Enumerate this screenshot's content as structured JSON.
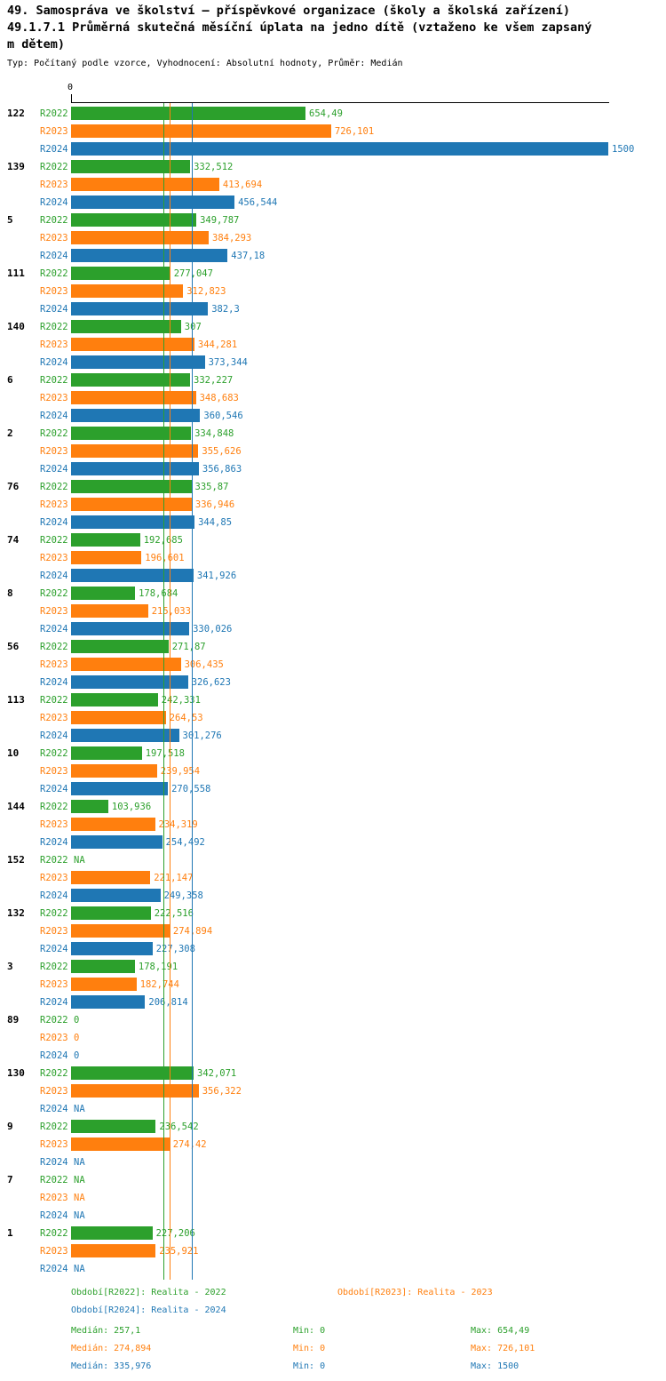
{
  "title": "49. Samospráva ve školství – příspěvkové organizace (školy a školská zařízení)",
  "subtitle_lines": [
    "49.1.7.1 Průměrná skutečná měsíční úplata na jedno dítě (vztaženo ke všem zapsaný",
    "m dětem)"
  ],
  "meta": "Typ: Počítaný podle vzorce, Vyhodnocení: Absolutní hodnoty, Průměr: Medián",
  "chart_data": {
    "type": "bar",
    "orientation": "horizontal",
    "axis": {
      "zero_label": "0",
      "xmin": 0,
      "xmax": 1500
    },
    "series_names": [
      "R2022",
      "R2023",
      "R2024"
    ],
    "colors": {
      "R2022": "#2ca02c",
      "R2023": "#ff7f0e",
      "R2024": "#1f77b4"
    },
    "medians": {
      "R2022": 257.1,
      "R2023": 274.894,
      "R2024": 335.976
    },
    "groups": [
      {
        "id": "122",
        "bars": [
          {
            "series": "R2022",
            "value": 654.49,
            "label": "654,49"
          },
          {
            "series": "R2023",
            "value": 726.101,
            "label": "726,101"
          },
          {
            "series": "R2024",
            "value": 1500,
            "label": "1500"
          }
        ]
      },
      {
        "id": "139",
        "bars": [
          {
            "series": "R2022",
            "value": 332.512,
            "label": "332,512"
          },
          {
            "series": "R2023",
            "value": 413.694,
            "label": "413,694"
          },
          {
            "series": "R2024",
            "value": 456.544,
            "label": "456,544"
          }
        ]
      },
      {
        "id": "5",
        "bars": [
          {
            "series": "R2022",
            "value": 349.787,
            "label": "349,787"
          },
          {
            "series": "R2023",
            "value": 384.293,
            "label": "384,293"
          },
          {
            "series": "R2024",
            "value": 437.18,
            "label": "437,18"
          }
        ]
      },
      {
        "id": "111",
        "bars": [
          {
            "series": "R2022",
            "value": 277.047,
            "label": "277,047"
          },
          {
            "series": "R2023",
            "value": 312.823,
            "label": "312,823"
          },
          {
            "series": "R2024",
            "value": 382.3,
            "label": "382,3"
          }
        ]
      },
      {
        "id": "140",
        "bars": [
          {
            "series": "R2022",
            "value": 307,
            "label": "307"
          },
          {
            "series": "R2023",
            "value": 344.281,
            "label": "344,281"
          },
          {
            "series": "R2024",
            "value": 373.344,
            "label": "373,344"
          }
        ]
      },
      {
        "id": "6",
        "bars": [
          {
            "series": "R2022",
            "value": 332.227,
            "label": "332,227"
          },
          {
            "series": "R2023",
            "value": 348.683,
            "label": "348,683"
          },
          {
            "series": "R2024",
            "value": 360.546,
            "label": "360,546"
          }
        ]
      },
      {
        "id": "2",
        "bars": [
          {
            "series": "R2022",
            "value": 334.848,
            "label": "334,848"
          },
          {
            "series": "R2023",
            "value": 355.626,
            "label": "355,626"
          },
          {
            "series": "R2024",
            "value": 356.863,
            "label": "356,863"
          }
        ]
      },
      {
        "id": "76",
        "bars": [
          {
            "series": "R2022",
            "value": 335.87,
            "label": "335,87"
          },
          {
            "series": "R2023",
            "value": 336.946,
            "label": "336,946"
          },
          {
            "series": "R2024",
            "value": 344.85,
            "label": "344,85"
          }
        ]
      },
      {
        "id": "74",
        "bars": [
          {
            "series": "R2022",
            "value": 192.685,
            "label": "192,685"
          },
          {
            "series": "R2023",
            "value": 196.601,
            "label": "196,601"
          },
          {
            "series": "R2024",
            "value": 341.926,
            "label": "341,926"
          }
        ]
      },
      {
        "id": "8",
        "bars": [
          {
            "series": "R2022",
            "value": 178.684,
            "label": "178,684"
          },
          {
            "series": "R2023",
            "value": 215.033,
            "label": "215,033"
          },
          {
            "series": "R2024",
            "value": 330.026,
            "label": "330,026"
          }
        ]
      },
      {
        "id": "56",
        "bars": [
          {
            "series": "R2022",
            "value": 271.87,
            "label": "271,87"
          },
          {
            "series": "R2023",
            "value": 306.435,
            "label": "306,435"
          },
          {
            "series": "R2024",
            "value": 326.623,
            "label": "326,623"
          }
        ]
      },
      {
        "id": "113",
        "bars": [
          {
            "series": "R2022",
            "value": 242.331,
            "label": "242,331"
          },
          {
            "series": "R2023",
            "value": 264.53,
            "label": "264,53"
          },
          {
            "series": "R2024",
            "value": 301.276,
            "label": "301,276"
          }
        ]
      },
      {
        "id": "10",
        "bars": [
          {
            "series": "R2022",
            "value": 197.518,
            "label": "197,518"
          },
          {
            "series": "R2023",
            "value": 239.954,
            "label": "239,954"
          },
          {
            "series": "R2024",
            "value": 270.558,
            "label": "270,558"
          }
        ]
      },
      {
        "id": "144",
        "bars": [
          {
            "series": "R2022",
            "value": 103.936,
            "label": "103,936"
          },
          {
            "series": "R2023",
            "value": 234.319,
            "label": "234,319"
          },
          {
            "series": "R2024",
            "value": 254.492,
            "label": "254,492"
          }
        ]
      },
      {
        "id": "152",
        "bars": [
          {
            "series": "R2022",
            "value": null,
            "label": "NA"
          },
          {
            "series": "R2023",
            "value": 221.147,
            "label": "221,147"
          },
          {
            "series": "R2024",
            "value": 249.358,
            "label": "249,358"
          }
        ]
      },
      {
        "id": "132",
        "bars": [
          {
            "series": "R2022",
            "value": 222.516,
            "label": "222,516"
          },
          {
            "series": "R2023",
            "value": 274.894,
            "label": "274,894"
          },
          {
            "series": "R2024",
            "value": 227.308,
            "label": "227,308"
          }
        ]
      },
      {
        "id": "3",
        "bars": [
          {
            "series": "R2022",
            "value": 178.191,
            "label": "178,191"
          },
          {
            "series": "R2023",
            "value": 182.744,
            "label": "182,744"
          },
          {
            "series": "R2024",
            "value": 206.814,
            "label": "206,814"
          }
        ]
      },
      {
        "id": "89",
        "bars": [
          {
            "series": "R2022",
            "value": 0,
            "label": "0"
          },
          {
            "series": "R2023",
            "value": 0,
            "label": "0"
          },
          {
            "series": "R2024",
            "value": 0,
            "label": "0"
          }
        ]
      },
      {
        "id": "130",
        "bars": [
          {
            "series": "R2022",
            "value": 342.071,
            "label": "342,071"
          },
          {
            "series": "R2023",
            "value": 356.322,
            "label": "356,322"
          },
          {
            "series": "R2024",
            "value": null,
            "label": "NA"
          }
        ]
      },
      {
        "id": "9",
        "bars": [
          {
            "series": "R2022",
            "value": 236.542,
            "label": "236,542"
          },
          {
            "series": "R2023",
            "value": 274.42,
            "label": "274,42"
          },
          {
            "series": "R2024",
            "value": null,
            "label": "NA"
          }
        ]
      },
      {
        "id": "7",
        "bars": [
          {
            "series": "R2022",
            "value": null,
            "label": "NA"
          },
          {
            "series": "R2023",
            "value": null,
            "label": "NA"
          },
          {
            "series": "R2024",
            "value": null,
            "label": "NA"
          }
        ]
      },
      {
        "id": "1",
        "bars": [
          {
            "series": "R2022",
            "value": 227.206,
            "label": "227,206"
          },
          {
            "series": "R2023",
            "value": 235.921,
            "label": "235,921"
          },
          {
            "series": "R2024",
            "value": null,
            "label": "NA"
          }
        ]
      }
    ],
    "legend": {
      "items": [
        {
          "key": "R2022",
          "label": "Období[R2022]: Realita - 2022"
        },
        {
          "key": "R2023",
          "label": "Období[R2023]: Realita - 2023"
        },
        {
          "key": "R2024",
          "label": "Období[R2024]: Realita - 2024"
        }
      ],
      "stats": [
        {
          "key": "R2022",
          "median": "Medián: 257,1",
          "min": "Min: 0",
          "max": "Max: 654,49"
        },
        {
          "key": "R2023",
          "median": "Medián: 274,894",
          "min": "Min: 0",
          "max": "Max: 726,101"
        },
        {
          "key": "R2024",
          "median": "Medián: 335,976",
          "min": "Min: 0",
          "max": "Max: 1500"
        }
      ]
    }
  }
}
